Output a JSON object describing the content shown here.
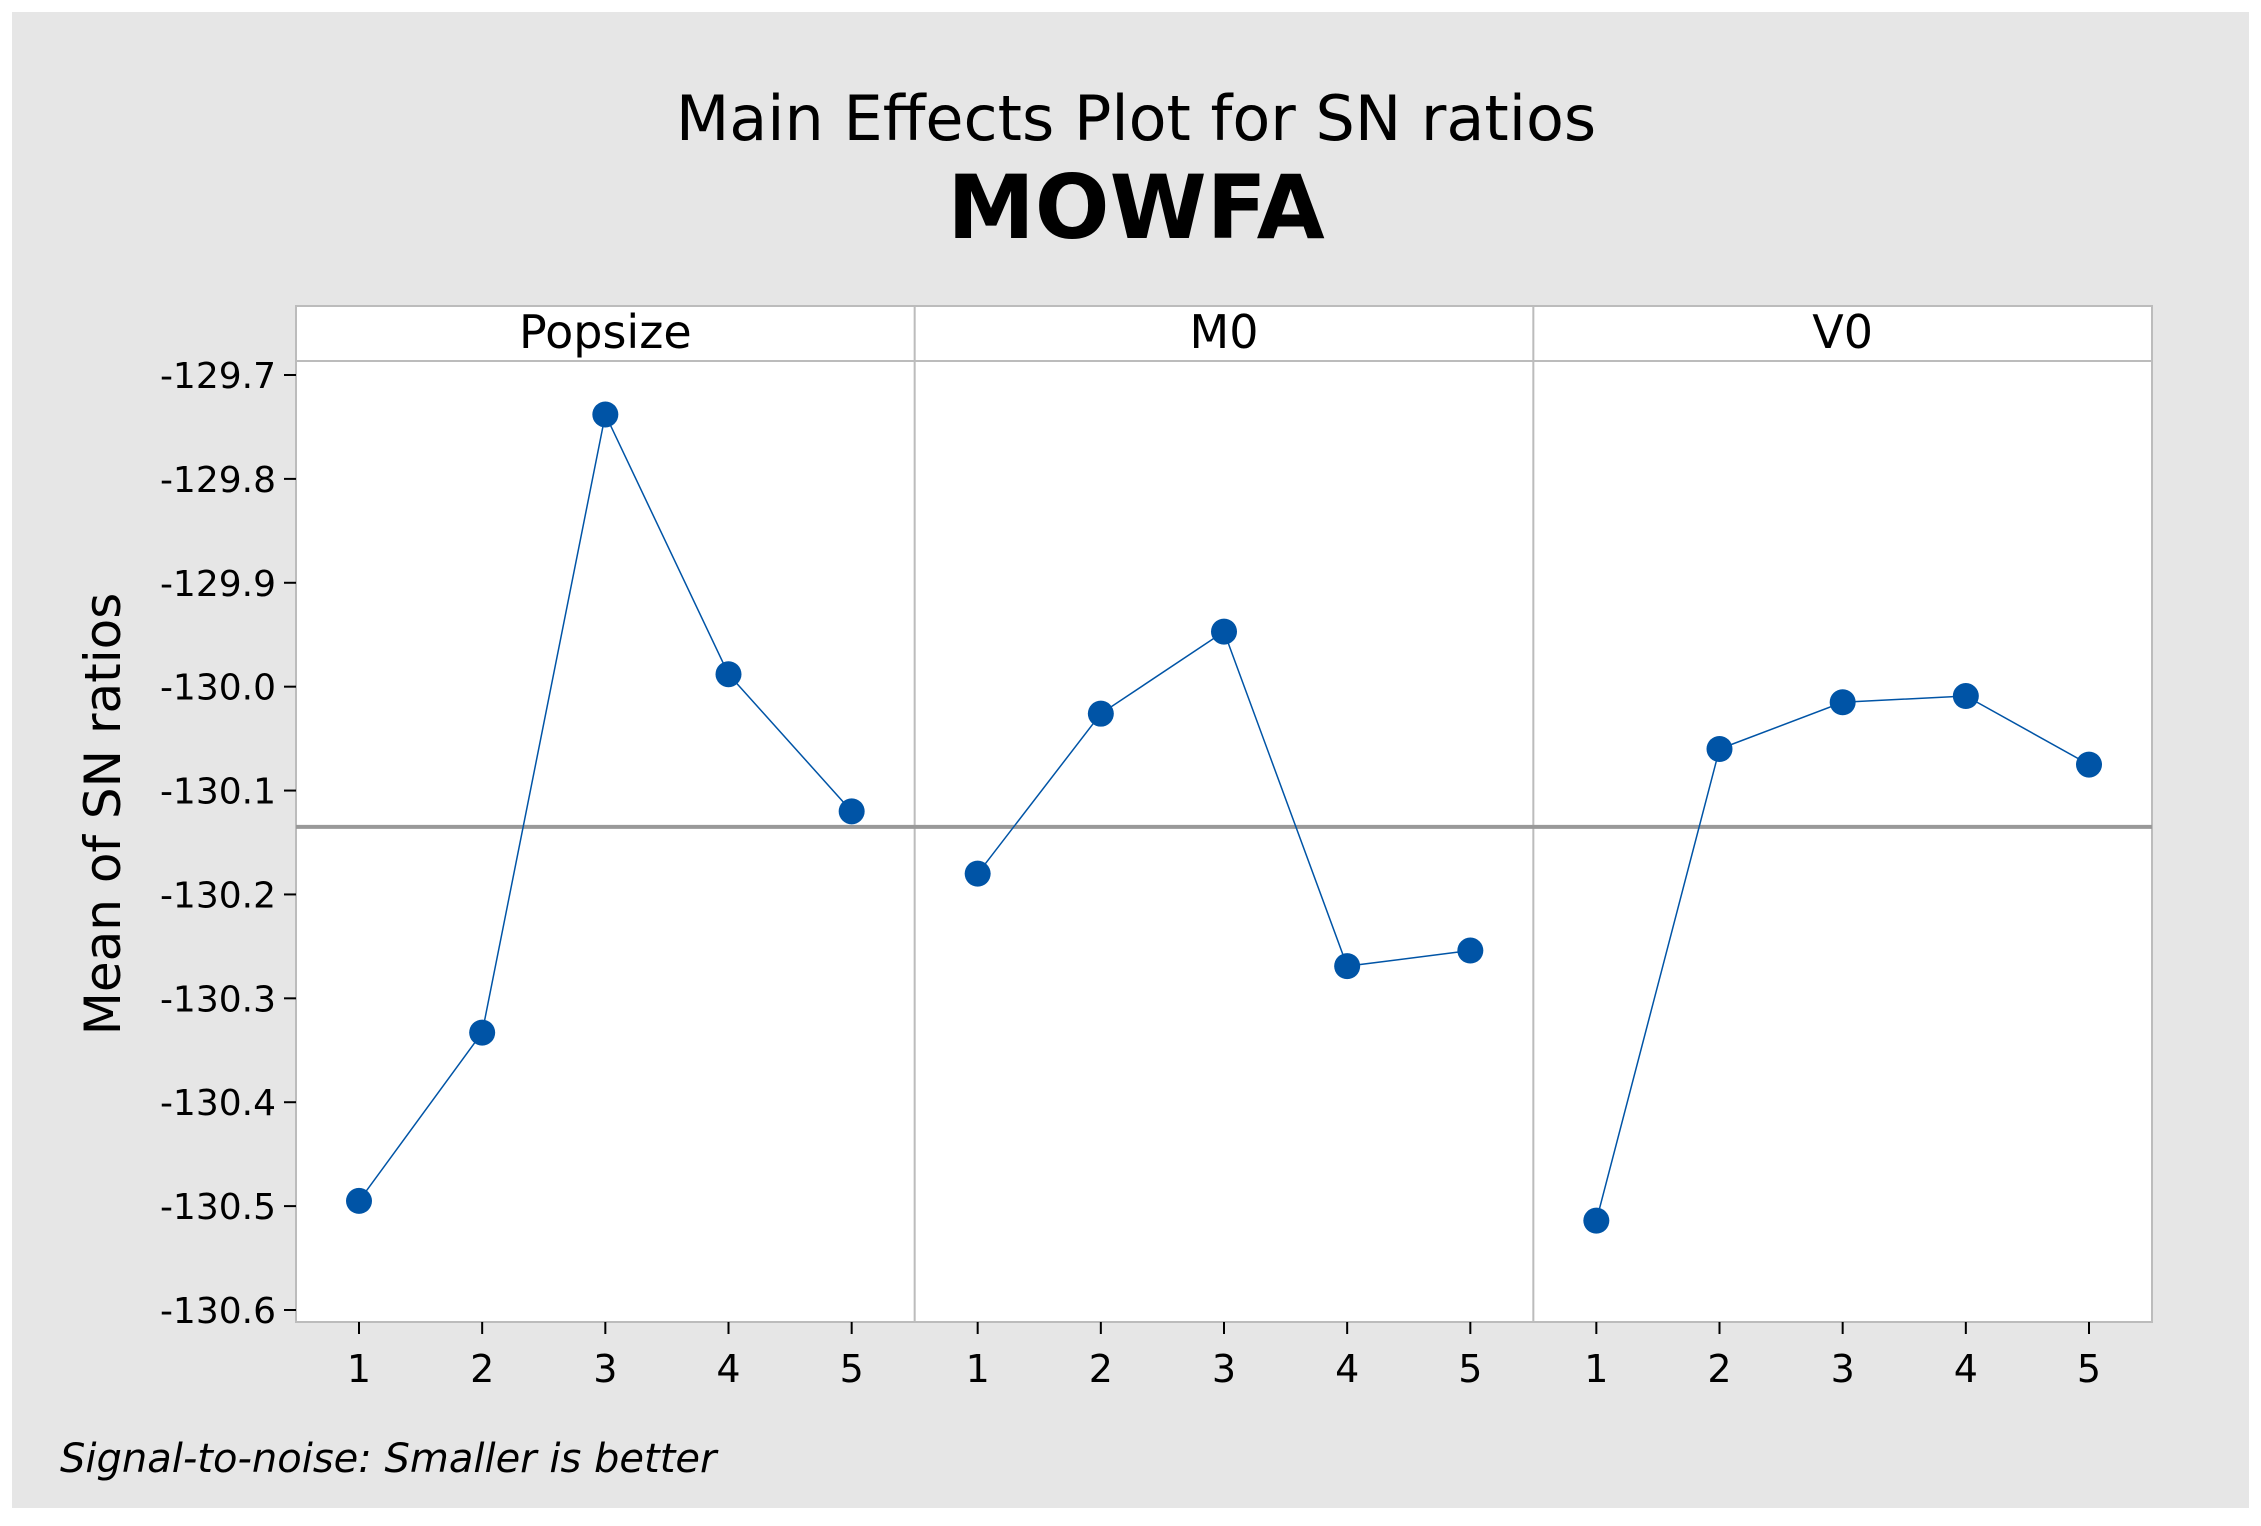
{
  "chart_data": {
    "type": "line",
    "title": "Main Effects Plot for SN ratios",
    "subtitle": "MOWFA",
    "ylabel": "Mean of SN ratios",
    "footnote": "Signal-to-noise: Smaller is better",
    "ylim": [
      -130.6,
      -129.7
    ],
    "yticks": [
      -129.7,
      -129.8,
      -129.9,
      -130.0,
      -130.1,
      -130.2,
      -130.3,
      -130.4,
      -130.5,
      -130.6
    ],
    "ytick_labels": [
      "-129.7",
      "-129.8",
      "-129.9",
      "-130.0",
      "-130.1",
      "-130.2",
      "-130.3",
      "-130.4",
      "-130.5",
      "-130.6"
    ],
    "reference_line": -130.135,
    "colors": {
      "background": "#e6e6e6",
      "plot_background": "#ffffff",
      "series": "#0054a6",
      "reference_line": "#999999",
      "frame": "#bcbcbc"
    },
    "panels": [
      {
        "name": "Popsize",
        "categories": [
          "1",
          "2",
          "3",
          "4",
          "5"
        ],
        "values": [
          -130.495,
          -130.333,
          -129.738,
          -129.988,
          -130.12
        ]
      },
      {
        "name": "M0",
        "categories": [
          "1",
          "2",
          "3",
          "4",
          "5"
        ],
        "values": [
          -130.18,
          -130.026,
          -129.947,
          -130.269,
          -130.254
        ]
      },
      {
        "name": "V0",
        "categories": [
          "1",
          "2",
          "3",
          "4",
          "5"
        ],
        "values": [
          -130.514,
          -130.06,
          -130.015,
          -130.009,
          -130.075
        ]
      }
    ]
  }
}
